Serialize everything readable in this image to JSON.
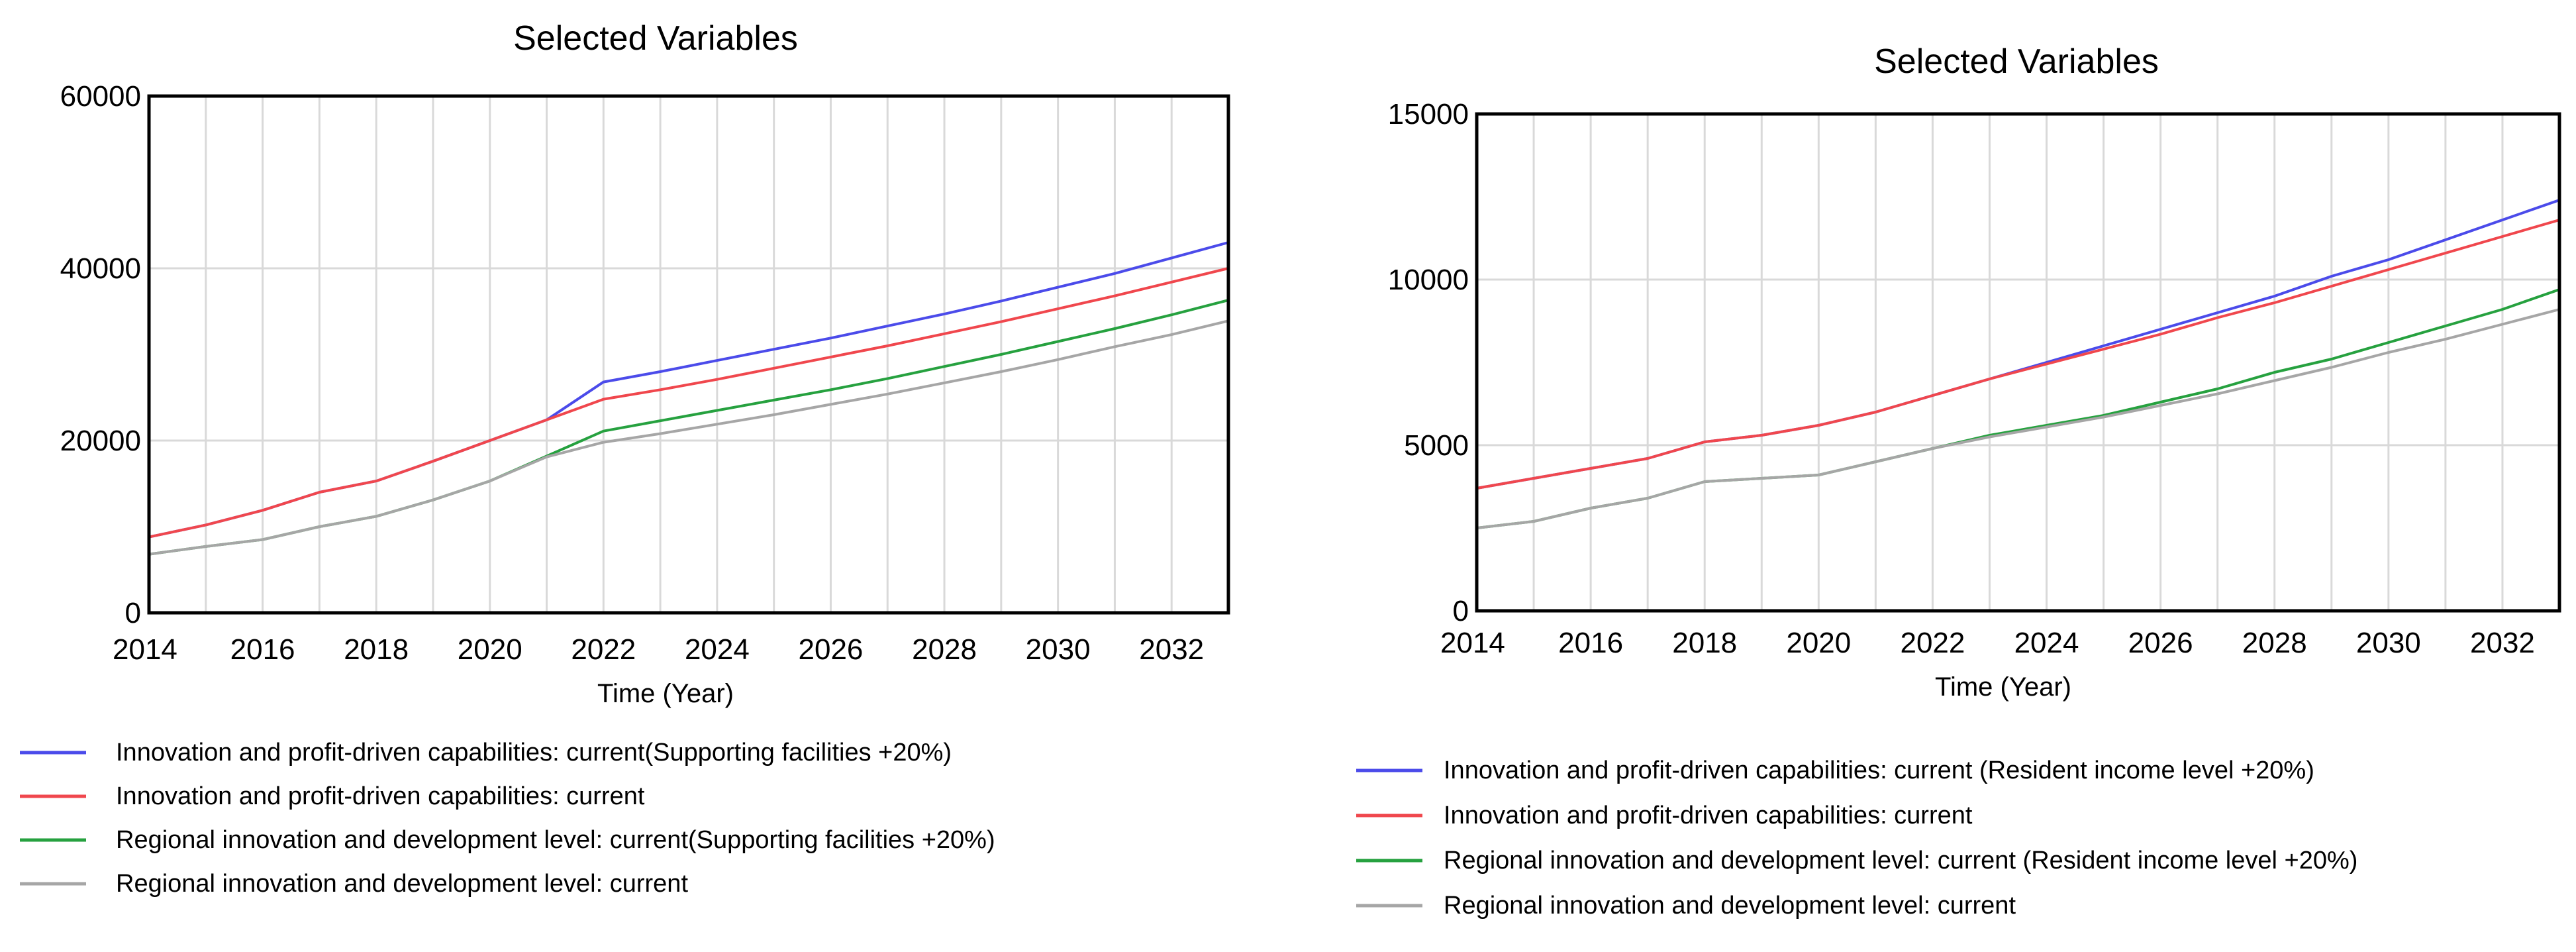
{
  "colors": {
    "blue": "#4b4bea",
    "red": "#f0474d",
    "green": "#26a13f",
    "gray": "#a6a6a6"
  },
  "chart_data": [
    {
      "type": "line",
      "title": "Selected Variables",
      "xlabel": "Time (Year)",
      "ylabel": "",
      "xlim": [
        2014,
        2033
      ],
      "ylim": [
        0,
        60000
      ],
      "x_ticks": [
        "2014",
        "2016",
        "2018",
        "2020",
        "2022",
        "2024",
        "2026",
        "2028",
        "2030",
        "2032"
      ],
      "y_ticks": [
        "0",
        "20000",
        "40000",
        "60000"
      ],
      "grid": true,
      "legend_position": "bottom",
      "x": [
        2014,
        2015,
        2016,
        2017,
        2018,
        2019,
        2020,
        2021,
        2022,
        2023,
        2024,
        2025,
        2026,
        2027,
        2028,
        2029,
        2030,
        2031,
        2032,
        2033
      ],
      "series": [
        {
          "name": "Innovation and profit-driven capabilities:  current(Supporting facilities +20%)",
          "color": "blue",
          "values": [
            8800,
            10200,
            11900,
            14000,
            15300,
            17600,
            20000,
            22400,
            26800,
            28000,
            29300,
            30600,
            31900,
            33300,
            34700,
            36200,
            37800,
            39400,
            41200,
            43000
          ]
        },
        {
          "name": "Innovation and profit-driven capabilities:  current",
          "color": "red",
          "values": [
            8800,
            10200,
            11900,
            14000,
            15300,
            17600,
            20000,
            22400,
            24800,
            25900,
            27100,
            28400,
            29700,
            31000,
            32400,
            33800,
            35300,
            36800,
            38400,
            40000
          ]
        },
        {
          "name": "Regional innovation and development level:  current(Supporting facilities +20%)",
          "color": "green",
          "values": [
            6800,
            7700,
            8500,
            10000,
            11200,
            13100,
            15300,
            18200,
            21100,
            22300,
            23500,
            24700,
            25900,
            27200,
            28600,
            30000,
            31500,
            33000,
            34600,
            36300
          ]
        },
        {
          "name": "Regional innovation and development level:  current",
          "color": "gray",
          "values": [
            6800,
            7700,
            8500,
            10000,
            11200,
            13100,
            15300,
            18100,
            19800,
            20800,
            21900,
            23000,
            24200,
            25400,
            26700,
            28000,
            29400,
            30900,
            32300,
            33900
          ]
        }
      ]
    },
    {
      "type": "line",
      "title": "Selected Variables",
      "xlabel": "Time (Year)",
      "ylabel": "",
      "xlim": [
        2014,
        2033
      ],
      "ylim": [
        0,
        15000
      ],
      "x_ticks": [
        "2014",
        "2016",
        "2018",
        "2020",
        "2022",
        "2024",
        "2026",
        "2028",
        "2030",
        "2032"
      ],
      "y_ticks": [
        "0",
        "5000",
        "10000",
        "15000"
      ],
      "grid": true,
      "legend_position": "bottom",
      "x": [
        2014,
        2015,
        2016,
        2017,
        2018,
        2019,
        2020,
        2021,
        2022,
        2023,
        2024,
        2025,
        2026,
        2027,
        2028,
        2029,
        2030,
        2031,
        2032,
        2033
      ],
      "series": [
        {
          "name": "Innovation and profit-driven capabilities:  current  (Resident income level +20%)",
          "color": "blue",
          "values": [
            3700,
            4000,
            4300,
            4600,
            5100,
            5300,
            5600,
            6000,
            6500,
            7000,
            7500,
            8000,
            8500,
            9000,
            9500,
            10100,
            10600,
            11200,
            11800,
            12400
          ]
        },
        {
          "name": "Innovation and profit-driven capabilities:  current",
          "color": "red",
          "values": [
            3700,
            4000,
            4300,
            4600,
            5100,
            5300,
            5600,
            6000,
            6500,
            7000,
            7450,
            7900,
            8350,
            8850,
            9300,
            9800,
            10300,
            10800,
            11300,
            11800
          ]
        },
        {
          "name": "Regional innovation and development level:  current  (Resident income level +20%)",
          "color": "green",
          "values": [
            2500,
            2700,
            3100,
            3400,
            3900,
            4000,
            4100,
            4500,
            4900,
            5300,
            5600,
            5900,
            6300,
            6700,
            7200,
            7600,
            8100,
            8600,
            9100,
            9700
          ]
        },
        {
          "name": "Regional innovation and development level:  current",
          "color": "gray",
          "values": [
            2500,
            2700,
            3100,
            3400,
            3900,
            4000,
            4100,
            4500,
            4900,
            5250,
            5550,
            5850,
            6200,
            6550,
            6950,
            7350,
            7800,
            8200,
            8650,
            9100
          ]
        }
      ]
    }
  ]
}
